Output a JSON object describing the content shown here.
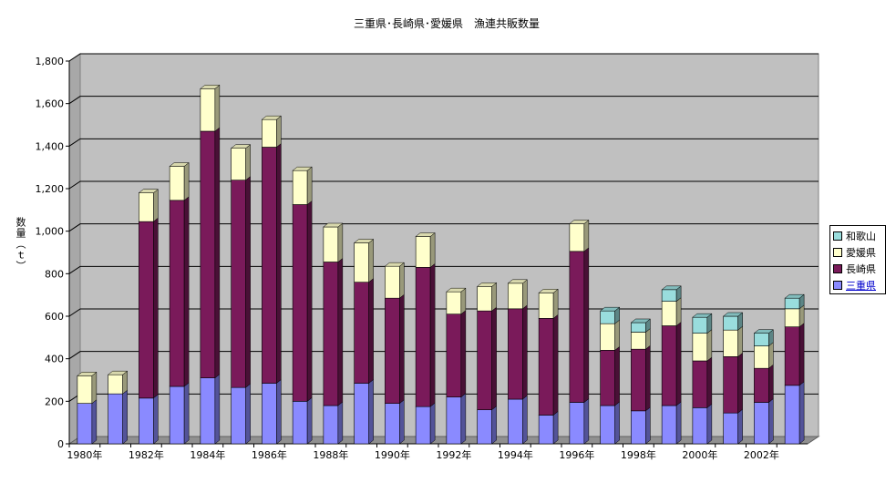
{
  "chart_data": {
    "type": "bar",
    "stacked": true,
    "title": "三重県･長崎県･愛媛県　漁連共販数量",
    "ylabel": "数量（ｔ）",
    "xlabel": "",
    "ylim": [
      0,
      1800
    ],
    "yticks": [
      0,
      200,
      400,
      600,
      800,
      1000,
      1200,
      1400,
      1600,
      1800
    ],
    "ytick_labels": [
      "0",
      "200",
      "400",
      "600",
      "800",
      "1,000",
      "1,200",
      "1,400",
      "1,600",
      "1,800"
    ],
    "categories": [
      "1980年",
      "1981年",
      "1982年",
      "1983年",
      "1984年",
      "1985年",
      "1986年",
      "1987年",
      "1988年",
      "1989年",
      "1990年",
      "1991年",
      "1992年",
      "1993年",
      "1994年",
      "1995年",
      "1996年",
      "1997年",
      "1998年",
      "1999年",
      "2000年",
      "2001年",
      "2002年",
      "2003年"
    ],
    "xtick_labels": [
      "1980年",
      "",
      "1982年",
      "",
      "1984年",
      "",
      "1986年",
      "",
      "1988年",
      "",
      "1990年",
      "",
      "1992年",
      "",
      "1994年",
      "",
      "1996年",
      "",
      "1998年",
      "",
      "2000年",
      "",
      "2002年",
      ""
    ],
    "grid": true,
    "legend_position": "right",
    "series": [
      {
        "name": "三重県",
        "color": "#8a8aff",
        "values": [
          190,
          235,
          215,
          270,
          310,
          265,
          285,
          200,
          180,
          285,
          190,
          175,
          220,
          160,
          210,
          135,
          195,
          180,
          155,
          180,
          170,
          145,
          195,
          275
        ]
      },
      {
        "name": "長崎県",
        "color": "#7a1a5a",
        "values": [
          0,
          0,
          830,
          875,
          1160,
          975,
          1110,
          925,
          675,
          475,
          495,
          655,
          390,
          465,
          425,
          455,
          710,
          260,
          290,
          375,
          220,
          265,
          160,
          275
        ]
      },
      {
        "name": "愛媛県",
        "color": "#ffffcc",
        "values": [
          130,
          90,
          135,
          160,
          200,
          150,
          130,
          160,
          165,
          185,
          150,
          145,
          105,
          115,
          120,
          120,
          130,
          125,
          80,
          115,
          130,
          125,
          105,
          85
        ]
      },
      {
        "name": "和歌山",
        "color": "#99dddd",
        "values": [
          0,
          0,
          0,
          0,
          0,
          0,
          0,
          0,
          0,
          0,
          0,
          0,
          0,
          0,
          0,
          0,
          0,
          60,
          45,
          55,
          75,
          65,
          60,
          50
        ]
      }
    ]
  },
  "legend": {
    "items": [
      {
        "label": "和歌山",
        "color": "#99dddd"
      },
      {
        "label": "愛媛県",
        "color": "#ffffcc"
      },
      {
        "label": "長崎県",
        "color": "#7a1a5a"
      },
      {
        "label": "三重県",
        "color": "#8a8aff"
      }
    ]
  }
}
